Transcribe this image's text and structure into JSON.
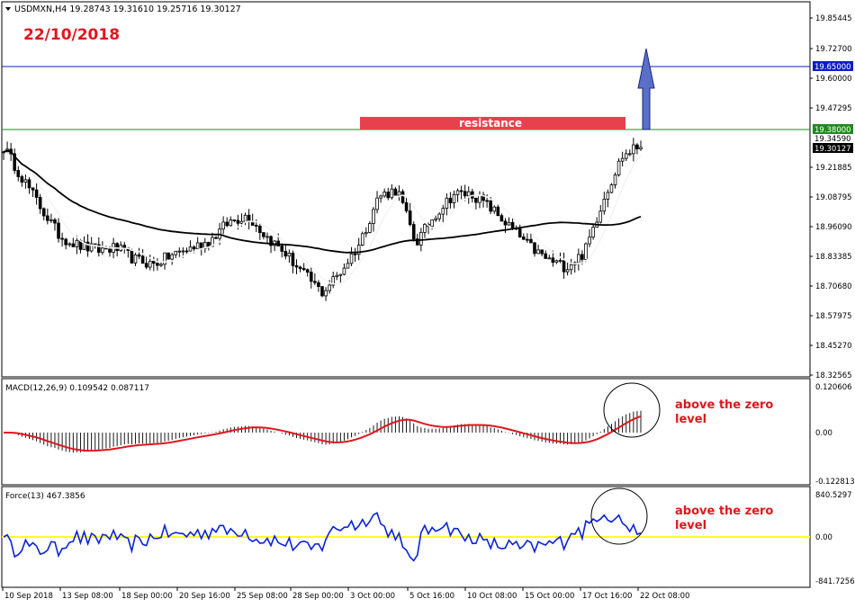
{
  "header": {
    "symbol_line": "USDMXN,H4  19.28743 19.31610 19.25716 19.30127",
    "date_label": "22/10/2018"
  },
  "resistance": {
    "label": "resistance"
  },
  "price_levels": {
    "blue_line": "19.65000",
    "green_line": "19.38000",
    "last_price": "19.30127",
    "extra_tick": "19.34590"
  },
  "indicators": {
    "macd_label": "MACD(12,26,9) 0.109542 0.087117",
    "force_label": "Force(13) 467.3856",
    "annotation": "above the zero level"
  },
  "colors": {
    "price_text": "#000000",
    "red_accent": "#e0161e",
    "resistance_box": "#e8414e",
    "arrow_fill": "#5a6fc8",
    "blue_line": "#0c1dc9",
    "green_line": "#1f8a1f",
    "ma_fast": "#ffffff",
    "ma_slow": "#000000",
    "macd_signal": "#e0161e",
    "force_line": "#0a22d8",
    "force_zero": "#ffff22"
  },
  "chart_data": [
    {
      "type": "candlestick",
      "title": "USDMXN,H4",
      "y_ticks": [
        "19.85445",
        "19.72700",
        "19.60000",
        "19.47295",
        "19.34590",
        "19.21885",
        "19.08795",
        "18.96090",
        "18.83385",
        "18.70680",
        "18.57975",
        "18.45270",
        "18.32565"
      ],
      "x_ticks": [
        "10 Sep 2018",
        "13 Sep 08:00",
        "18 Sep 00:00",
        "20 Sep 16:00",
        "25 Sep 08:00",
        "28 Sep 00:00",
        "3 Oct 00:00",
        "5 Oct 16:00",
        "10 Oct 08:00",
        "15 Oct 00:00",
        "17 Oct 16:00",
        "22 Oct 08:00"
      ],
      "ylim": [
        18.3,
        19.9
      ],
      "close_samples": [
        19.28,
        19.15,
        19.02,
        18.9,
        18.86,
        18.84,
        18.85,
        18.8,
        18.78,
        18.82,
        18.85,
        18.88,
        18.96,
        18.99,
        18.9,
        18.83,
        18.74,
        18.66,
        18.75,
        18.87,
        19.07,
        19.1,
        18.87,
        18.99,
        19.08,
        19.08,
        19.02,
        18.94,
        18.86,
        18.8,
        18.77,
        18.83,
        19.06,
        19.24,
        19.29
      ],
      "levels": [
        19.65,
        19.38
      ],
      "resistance_zone": [
        19.38,
        19.41
      ]
    },
    {
      "type": "bar",
      "title": "MACD(12,26,9)",
      "y_ticks": [
        "0.120606",
        "0.00",
        "-0.122813"
      ],
      "ylim": [
        -0.13,
        0.13
      ]
    },
    {
      "type": "line",
      "title": "Force(13)",
      "y_ticks": [
        "840.5297",
        "0.00",
        "-841.7256"
      ],
      "ylim": [
        -860,
        860
      ]
    }
  ]
}
